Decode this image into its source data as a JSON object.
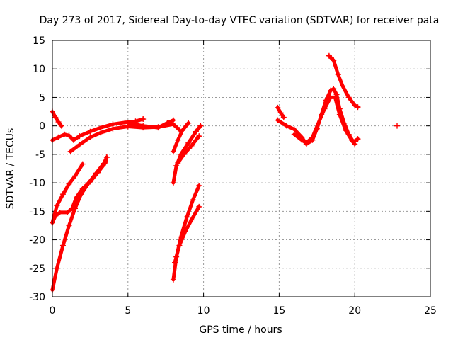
{
  "chart_data": {
    "type": "scatter",
    "title": "Day 273 of 2017, Sidereal Day-to-day VTEC variation (SDTVAR) for receiver pata",
    "xlabel": "GPS time / hours",
    "ylabel": "SDTVAR / TECUs",
    "xlim": [
      0,
      25
    ],
    "ylim": [
      -30,
      15
    ],
    "grid": true,
    "marker": "+",
    "series_color": "#ff0000",
    "xticks": [
      0,
      5,
      10,
      15,
      20,
      25
    ],
    "yticks": [
      -30,
      -25,
      -20,
      -15,
      -10,
      -5,
      0,
      5,
      10,
      15
    ],
    "series": [
      {
        "name": "arc-1",
        "points": [
          [
            0.0,
            2.5
          ],
          [
            0.2,
            1.5
          ],
          [
            0.4,
            0.7
          ],
          [
            0.6,
            0.0
          ]
        ]
      },
      {
        "name": "arc-2",
        "points": [
          [
            0.0,
            -2.5
          ],
          [
            0.4,
            -2.0
          ],
          [
            0.8,
            -1.5
          ],
          [
            1.1,
            -1.7
          ],
          [
            1.4,
            -2.5
          ],
          [
            1.8,
            -1.8
          ],
          [
            2.5,
            -1.0
          ],
          [
            3.2,
            -0.3
          ],
          [
            4.0,
            0.3
          ],
          [
            4.8,
            0.6
          ],
          [
            5.5,
            0.8
          ],
          [
            6.0,
            1.2
          ]
        ]
      },
      {
        "name": "arc-3",
        "points": [
          [
            1.2,
            -4.5
          ],
          [
            1.8,
            -3.3
          ],
          [
            2.5,
            -2.0
          ],
          [
            3.2,
            -1.2
          ],
          [
            4.0,
            -0.5
          ],
          [
            5.0,
            -0.1
          ],
          [
            6.0,
            -0.3
          ],
          [
            7.0,
            -0.2
          ],
          [
            8.0,
            0.3
          ],
          [
            8.4,
            -0.7
          ]
        ]
      },
      {
        "name": "arc-4",
        "points": [
          [
            5.0,
            0.5
          ],
          [
            6.0,
            0.0
          ],
          [
            7.0,
            -0.3
          ],
          [
            7.6,
            0.5
          ],
          [
            8.0,
            1.0
          ]
        ]
      },
      {
        "name": "arc-5",
        "points": [
          [
            0.0,
            -17.0
          ],
          [
            0.2,
            -15.8
          ],
          [
            0.5,
            -15.2
          ],
          [
            1.0,
            -15.2
          ],
          [
            1.3,
            -14.5
          ],
          [
            1.6,
            -12.5
          ],
          [
            2.0,
            -11.0
          ],
          [
            2.5,
            -9.8
          ],
          [
            3.0,
            -8.2
          ],
          [
            3.5,
            -6.5
          ],
          [
            3.6,
            -5.5
          ]
        ]
      },
      {
        "name": "arc-6",
        "points": [
          [
            0.0,
            -17.0
          ],
          [
            0.3,
            -14.0
          ],
          [
            0.7,
            -12.0
          ],
          [
            1.1,
            -10.2
          ],
          [
            1.5,
            -8.8
          ],
          [
            2.0,
            -6.7
          ]
        ]
      },
      {
        "name": "arc-7",
        "points": [
          [
            0.0,
            -28.8
          ],
          [
            0.3,
            -25.0
          ],
          [
            0.7,
            -21.0
          ],
          [
            1.1,
            -17.5
          ],
          [
            1.5,
            -14.5
          ],
          [
            1.9,
            -12.0
          ],
          [
            2.4,
            -10.0
          ],
          [
            2.9,
            -8.3
          ],
          [
            3.4,
            -6.6
          ],
          [
            3.6,
            -5.5
          ]
        ]
      },
      {
        "name": "arc-8",
        "points": [
          [
            8.0,
            -4.5
          ],
          [
            8.3,
            -2.5
          ],
          [
            8.6,
            -0.8
          ],
          [
            9.0,
            0.5
          ]
        ]
      },
      {
        "name": "arc-9",
        "points": [
          [
            8.0,
            -10.0
          ],
          [
            8.2,
            -7.0
          ],
          [
            8.5,
            -5.0
          ],
          [
            9.0,
            -3.0
          ],
          [
            9.5,
            -1.0
          ],
          [
            9.8,
            0.0
          ]
        ]
      },
      {
        "name": "arc-10",
        "points": [
          [
            8.3,
            -6.5
          ],
          [
            8.7,
            -5.0
          ],
          [
            9.2,
            -3.5
          ],
          [
            9.7,
            -1.8
          ]
        ]
      },
      {
        "name": "arc-11",
        "points": [
          [
            8.0,
            -27.0
          ],
          [
            8.2,
            -23.0
          ],
          [
            8.5,
            -19.5
          ],
          [
            8.9,
            -16.0
          ],
          [
            9.3,
            -13.0
          ],
          [
            9.7,
            -10.5
          ]
        ]
      },
      {
        "name": "arc-12",
        "points": [
          [
            8.1,
            -24.0
          ],
          [
            8.4,
            -21.0
          ],
          [
            8.8,
            -18.5
          ],
          [
            9.2,
            -16.5
          ],
          [
            9.7,
            -14.2
          ]
        ]
      },
      {
        "name": "arc-13",
        "points": [
          [
            14.9,
            3.2
          ],
          [
            15.1,
            2.3
          ],
          [
            15.3,
            1.5
          ]
        ]
      },
      {
        "name": "arc-14",
        "points": [
          [
            14.9,
            1.0
          ],
          [
            15.5,
            0.0
          ],
          [
            16.0,
            -0.6
          ],
          [
            16.5,
            -2.0
          ],
          [
            16.8,
            -3.2
          ],
          [
            17.2,
            -2.5
          ],
          [
            17.5,
            -0.5
          ],
          [
            17.8,
            2.0
          ],
          [
            18.1,
            4.5
          ],
          [
            18.4,
            6.2
          ],
          [
            18.6,
            6.5
          ],
          [
            18.8,
            5.5
          ],
          [
            19.0,
            3.0
          ],
          [
            19.3,
            0.5
          ],
          [
            19.6,
            -1.5
          ],
          [
            19.9,
            -2.8
          ],
          [
            20.2,
            -2.3
          ]
        ]
      },
      {
        "name": "arc-15",
        "points": [
          [
            16.0,
            -1.5
          ],
          [
            16.5,
            -2.5
          ],
          [
            16.8,
            -3.0
          ],
          [
            17.2,
            -2.0
          ],
          [
            17.6,
            0.5
          ],
          [
            18.0,
            3.0
          ],
          [
            18.4,
            5.0
          ],
          [
            18.7,
            5.0
          ],
          [
            19.0,
            2.0
          ],
          [
            19.4,
            -0.8
          ],
          [
            19.8,
            -2.5
          ],
          [
            20.0,
            -3.2
          ]
        ]
      },
      {
        "name": "arc-16",
        "points": [
          [
            18.3,
            12.3
          ],
          [
            18.6,
            11.5
          ],
          [
            18.9,
            9.0
          ],
          [
            19.2,
            7.0
          ],
          [
            19.6,
            5.0
          ],
          [
            20.0,
            3.6
          ],
          [
            20.2,
            3.3
          ]
        ]
      },
      {
        "name": "point-17",
        "points": [
          [
            22.8,
            0.0
          ]
        ]
      }
    ]
  }
}
